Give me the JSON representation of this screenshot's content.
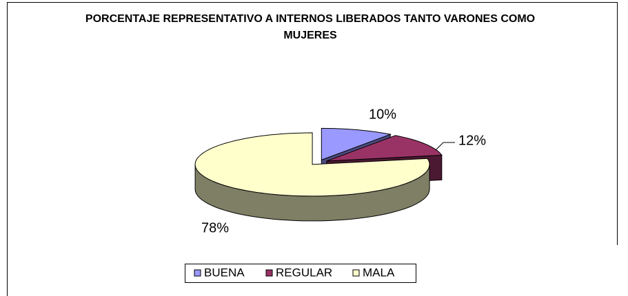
{
  "chart_data": {
    "type": "pie3d",
    "title": "PORCENTAJE REPRESENTATIVO A INTERNOS LIBERADOS TANTO VARONES COMO MUJERES",
    "categories": [
      "BUENA",
      "REGULAR",
      "MALA"
    ],
    "values": [
      10,
      12,
      78
    ],
    "value_labels": [
      "10%",
      "12%",
      "78%"
    ],
    "colors": [
      "#9999ff",
      "#993366",
      "#ffffcc"
    ],
    "legend": "bottom"
  }
}
